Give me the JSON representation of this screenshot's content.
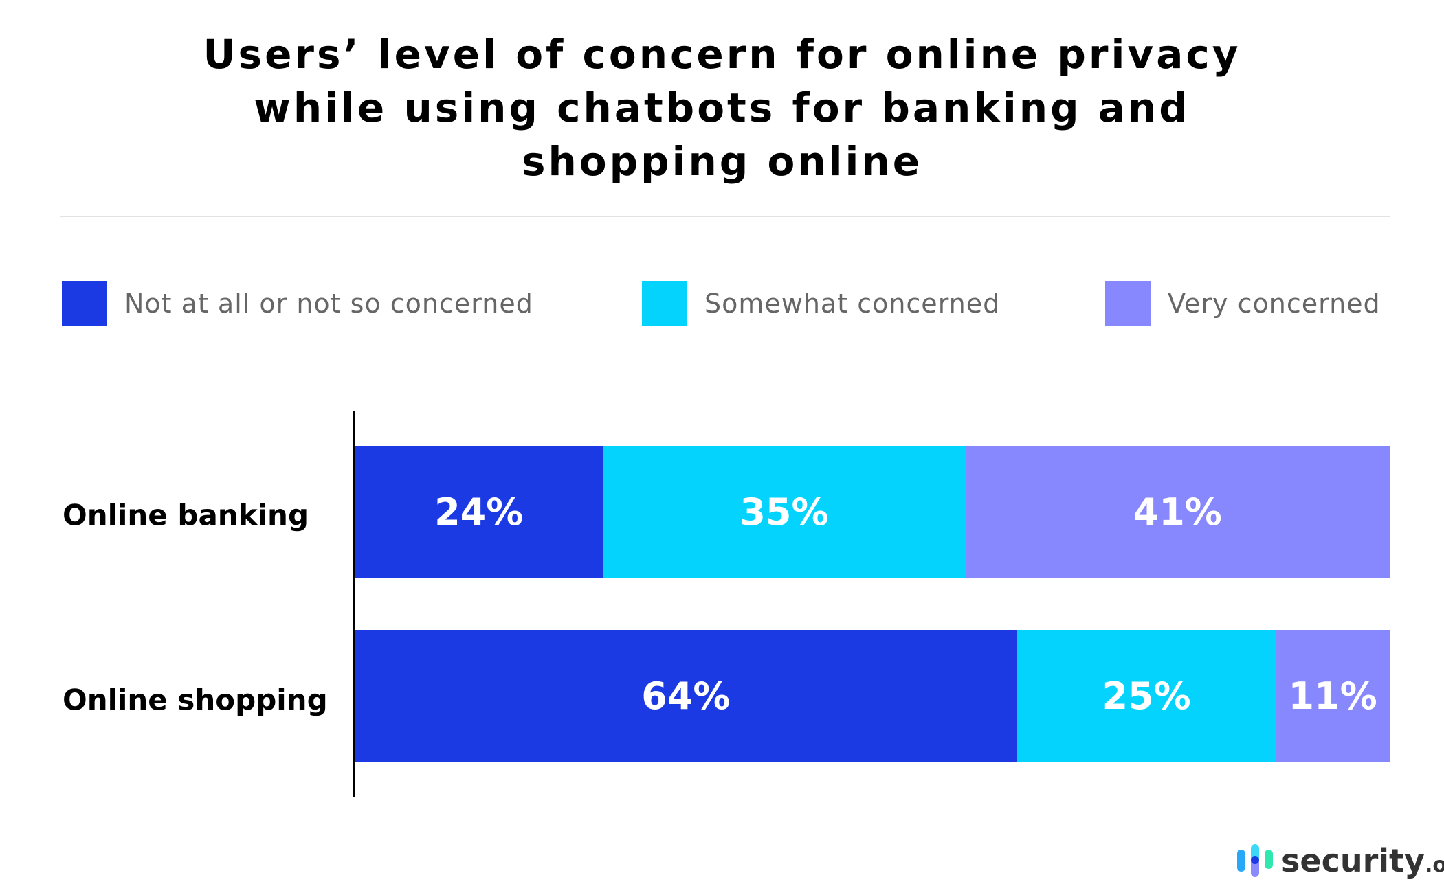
{
  "chart_data": {
    "type": "bar",
    "orientation": "horizontal",
    "stacked": true,
    "title": "Users' level of concern for online privacy while using chatbots for banking and shopping online",
    "title_lines": [
      "Users’ level of concern for online privacy",
      "while using chatbots for banking and",
      "shopping online"
    ],
    "categories": [
      "Online banking",
      "Online shopping"
    ],
    "series": [
      {
        "name": "Not at all or not so concerned",
        "color": "#1c3ae4",
        "values": [
          24,
          64
        ],
        "labels": [
          "24%",
          "64%"
        ]
      },
      {
        "name": "Somewhat concerned",
        "color": "#04d4fd",
        "values": [
          35,
          25
        ],
        "labels": [
          "35%",
          "25%"
        ]
      },
      {
        "name": "Very concerned",
        "color": "#8787fe",
        "values": [
          41,
          11
        ],
        "labels": [
          "41%",
          "11%"
        ]
      }
    ],
    "xlim": [
      0,
      100
    ],
    "grid": false,
    "legend_position": "top"
  },
  "branding": {
    "logo_text": "security",
    "logo_suffix": ".org"
  }
}
